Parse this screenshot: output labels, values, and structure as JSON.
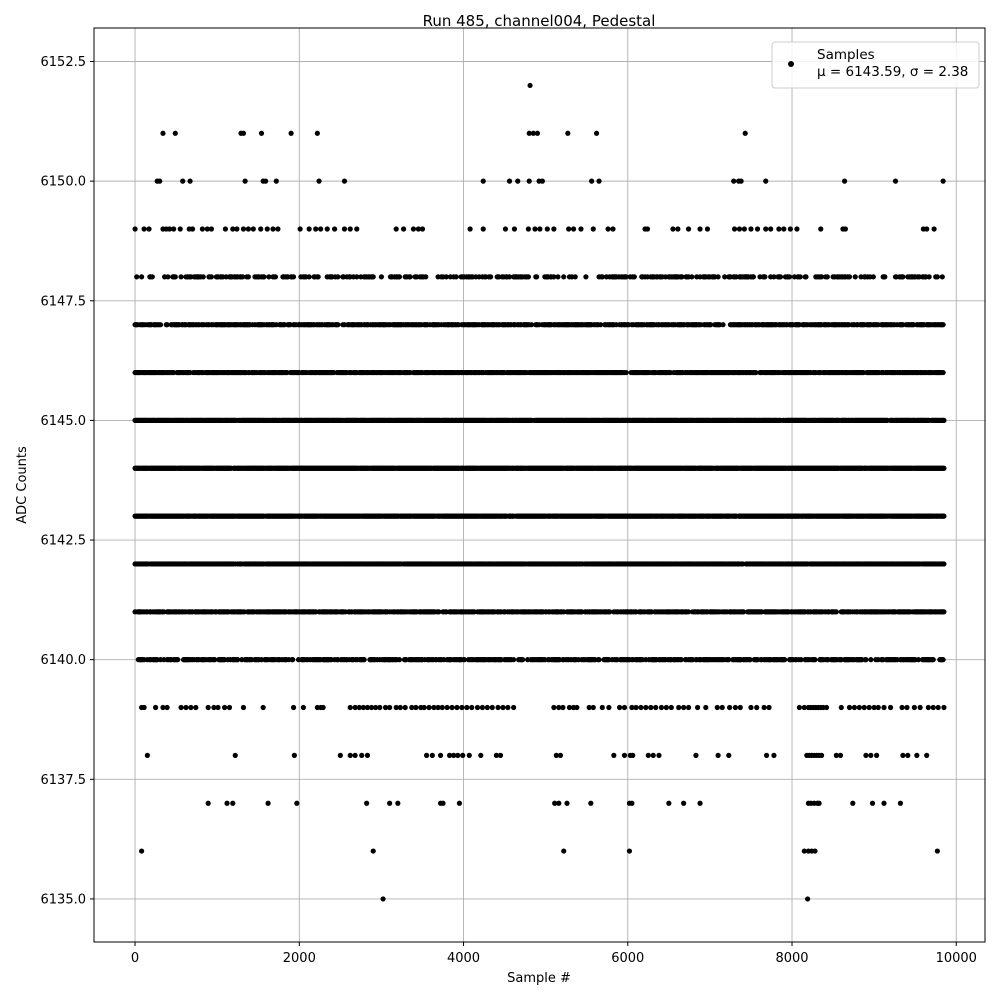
{
  "chart_data": {
    "type": "scatter",
    "title": "Run 485, channel004, Pedestal",
    "xlabel": "Sample #",
    "ylabel": "ADC Counts",
    "xlim": [
      -500,
      10350
    ],
    "ylim": [
      6134.1,
      6153.2
    ],
    "x_ticks": [
      0,
      2000,
      4000,
      6000,
      8000,
      10000
    ],
    "x_tick_labels": [
      "0",
      "2000",
      "4000",
      "6000",
      "8000",
      "10000"
    ],
    "y_ticks": [
      6135.0,
      6137.5,
      6140.0,
      6142.5,
      6145.0,
      6147.5,
      6150.0,
      6152.5
    ],
    "y_tick_labels": [
      "6135.0",
      "6137.5",
      "6140.0",
      "6142.5",
      "6145.0",
      "6147.5",
      "6150.0",
      "6152.5"
    ],
    "grid": true,
    "legend": {
      "placement": "top-right",
      "entry_name": "Samples",
      "entry_stats": "μ = 6143.59, σ = 2.38"
    },
    "marker_color": "#000000",
    "series": [
      {
        "name": "Samples",
        "levels": [
          {
            "y": 6152,
            "x": [
              4810
            ]
          },
          {
            "y": 6151,
            "x": [
              340,
              490,
              1290,
              1320,
              1540,
              1900,
              2220,
              4800,
              4850,
              4900,
              5270,
              5620,
              7430
            ]
          },
          {
            "y": 6150,
            "x": [
              270,
              300,
              580,
              670,
              1340,
              1560,
              1590,
              1720,
              2240,
              2550,
              4240,
              4560,
              4660,
              4800,
              4920,
              4960,
              5560,
              5650,
              7290,
              7350,
              7380,
              7680,
              8640,
              9260,
              9840
            ]
          },
          {
            "y": 6149,
            "x": [
              0,
              110,
              170,
              340,
              380,
              420,
              470,
              550,
              660,
              700,
              820,
              880,
              930,
              1100,
              1190,
              1240,
              1320,
              1380,
              1440,
              1530,
              1610,
              1680,
              1740,
              2010,
              2120,
              2200,
              2260,
              2340,
              2430,
              2550,
              2620,
              2700,
              3180,
              3270,
              3390,
              3450,
              3500,
              4080,
              4240,
              4510,
              4620,
              4790,
              4870,
              4930,
              5020,
              5100,
              5280,
              5340,
              5430,
              5580,
              5760,
              5820,
              6210,
              6240,
              6550,
              6610,
              6740,
              6880,
              6970,
              7300,
              7360,
              7420,
              7500,
              7580,
              7680,
              7740,
              7840,
              7900,
              7980,
              8060,
              8350,
              8620,
              8650,
              9600,
              9640,
              9730
            ]
          },
          {
            "y": 6148,
            "mode": "dense",
            "x_start": 20,
            "x_end": 9850,
            "density": 0.32,
            "seed": 48
          },
          {
            "y": 6147,
            "mode": "dense",
            "x_start": 0,
            "x_end": 9850,
            "density": 0.62,
            "seed": 47
          },
          {
            "y": 6146,
            "mode": "dense",
            "x_start": 0,
            "x_end": 9850,
            "density": 0.8,
            "seed": 46
          },
          {
            "y": 6145,
            "mode": "dense",
            "x_start": 0,
            "x_end": 9850,
            "density": 0.92,
            "seed": 45
          },
          {
            "y": 6144,
            "mode": "dense",
            "x_start": 0,
            "x_end": 9850,
            "density": 0.95,
            "seed": 44
          },
          {
            "y": 6143,
            "mode": "dense",
            "x_start": 0,
            "x_end": 9850,
            "density": 0.94,
            "seed": 43
          },
          {
            "y": 6142,
            "mode": "dense",
            "x_start": 0,
            "x_end": 9850,
            "density": 0.9,
            "seed": 42
          },
          {
            "y": 6141,
            "mode": "dense",
            "x_start": 0,
            "x_end": 9850,
            "density": 0.72,
            "seed": 41
          },
          {
            "y": 6140,
            "mode": "dense",
            "x_start": 40,
            "x_end": 9850,
            "density": 0.55,
            "seed": 40
          },
          {
            "y": 6139,
            "x": [
              80,
              110,
              250,
              340,
              390,
              560,
              620,
              680,
              740,
              890,
              960,
              1010,
              1090,
              1150,
              1320,
              1560,
              1930,
              2050,
              2220,
              2260,
              2290,
              2620,
              2680,
              2730,
              2780,
              2830,
              2880,
              2930,
              2980,
              3050,
              3100,
              3180,
              3230,
              3290,
              3370,
              3420,
              3480,
              3520,
              3580,
              3640,
              3690,
              3740,
              3800,
              3860,
              3920,
              3980,
              4040,
              4100,
              4170,
              4230,
              4290,
              4350,
              4420,
              4480,
              4540,
              4610,
              5100,
              5160,
              5210,
              5290,
              5340,
              5380,
              5530,
              5580,
              5690,
              5770,
              5900,
              5960,
              6050,
              6100,
              6160,
              6220,
              6280,
              6340,
              6410,
              6470,
              6530,
              6620,
              6680,
              6740,
              6850,
              6950,
              7090,
              7150,
              7240,
              7310,
              7370,
              7500,
              7570,
              7660,
              7720,
              8090,
              8150,
              8200,
              8230,
              8260,
              8290,
              8320,
              8350,
              8380,
              8420,
              8600,
              8700,
              8760,
              8820,
              8880,
              8940,
              9000,
              9050,
              9120,
              9200,
              9340,
              9400,
              9490,
              9560,
              9660,
              9720,
              9780,
              9850
            ]
          },
          {
            "y": 6138,
            "x": [
              150,
              1220,
              1940,
              2500,
              2620,
              2680,
              2760,
              2830,
              3550,
              3620,
              3720,
              3830,
              3880,
              3930,
              3990,
              4070,
              4210,
              4400,
              4450,
              5130,
              5180,
              5830,
              5960,
              6030,
              6060,
              6250,
              6310,
              6380,
              6830,
              7100,
              7230,
              7690,
              7780,
              8180,
              8210,
              8240,
              8270,
              8300,
              8330,
              8360,
              8540,
              8590,
              8900,
              8960,
              9030,
              9350,
              9410,
              9520,
              9640
            ]
          },
          {
            "y": 6137,
            "x": [
              890,
              1120,
              1190,
              1620,
              1970,
              2820,
              3100,
              3200,
              3720,
              3750,
              3950,
              5110,
              5160,
              5260,
              5550,
              6020,
              6050,
              6500,
              6680,
              6880,
              8200,
              8230,
              8270,
              8310,
              8330,
              8740,
              8980,
              9120,
              9320
            ]
          },
          {
            "y": 6136,
            "x": [
              80,
              2900,
              5220,
              6020,
              8150,
              8200,
              8240,
              8280,
              9770
            ]
          },
          {
            "y": 6135,
            "x": [
              3020,
              8190
            ]
          }
        ]
      }
    ]
  }
}
